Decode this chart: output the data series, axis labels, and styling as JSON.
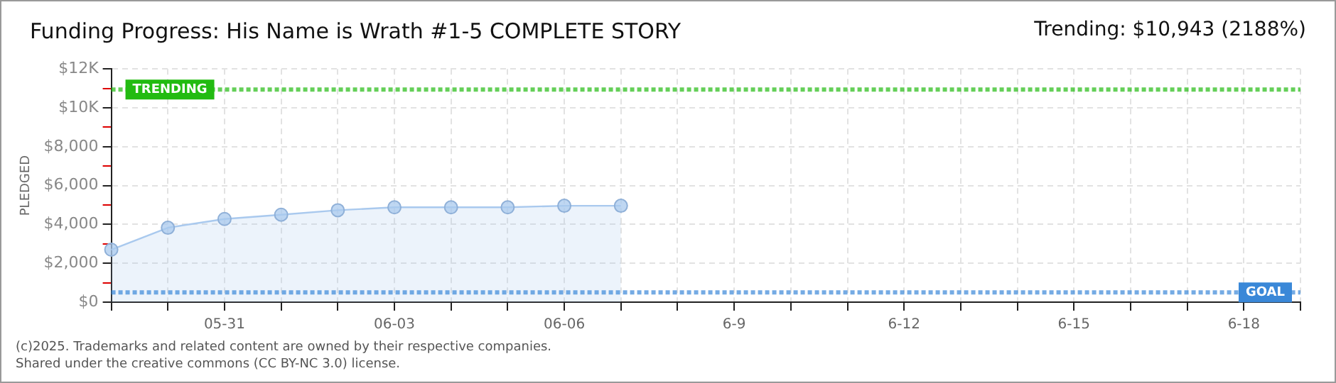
{
  "chart_data": {
    "type": "area",
    "title": "Funding Progress: His Name is Wrath #1-5 COMPLETE STORY",
    "subtitle": "Trending: $10,943 (2188%)",
    "ylabel": "PLEDGED",
    "categories": [
      null,
      null,
      "05-31",
      null,
      null,
      "06-03",
      null,
      null,
      "06-06",
      null,
      null,
      "6-9",
      null,
      null,
      "6-12",
      null,
      null,
      "6-15",
      null,
      null,
      "6-18",
      null
    ],
    "series": [
      {
        "color": "#a9c9ee",
        "values": [
          2700,
          3830,
          4280,
          4500,
          4730,
          4880,
          4880,
          4880,
          4960,
          4960,
          null,
          null,
          null,
          null,
          null,
          null,
          null,
          null,
          null,
          null,
          null,
          null
        ]
      }
    ],
    "ylim": [
      0,
      12000
    ],
    "yticks": [
      {
        "value": 0,
        "label": "$0"
      },
      {
        "value": 1000,
        "label": null
      },
      {
        "value": 2000,
        "label": "$2,000"
      },
      {
        "value": 3000,
        "label": null
      },
      {
        "value": 4000,
        "label": "$4,000"
      },
      {
        "value": 5000,
        "label": null
      },
      {
        "value": 6000,
        "label": "$6,000"
      },
      {
        "value": 7000,
        "label": null
      },
      {
        "value": 8000,
        "label": "$8,000"
      },
      {
        "value": 9000,
        "label": null
      },
      {
        "value": 10000,
        "label": "$10K"
      },
      {
        "value": 11000,
        "label": null
      },
      {
        "value": 12000,
        "label": "$12K"
      }
    ],
    "ref_lines": [
      {
        "axis": "y",
        "value": 10943,
        "label": "TRENDING",
        "color": "#22bb11",
        "line_style": "dotted"
      },
      {
        "axis": "y",
        "value": 500,
        "label": "GOAL",
        "color": "#3a88d8",
        "line_style": "dotted"
      }
    ],
    "annotations": [
      "(c)2025. Trademarks and related content are owned by their respective companies.",
      "Shared under the creative commons (CC BY-NC 3.0) license."
    ],
    "grid": true,
    "legend": false,
    "marker": "circle",
    "line_style": "solid"
  }
}
